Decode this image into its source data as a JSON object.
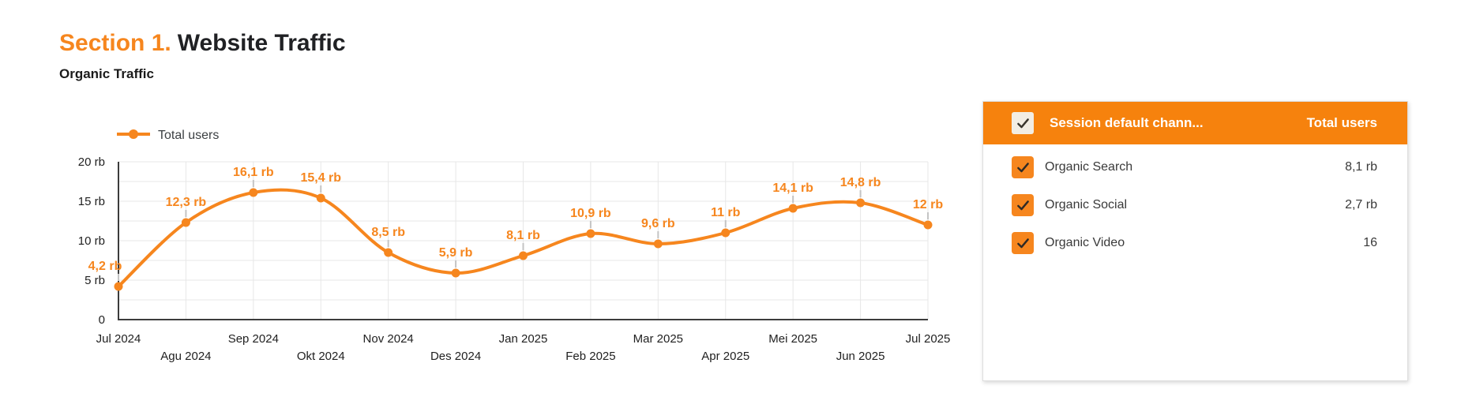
{
  "header": {
    "section_label": "Section 1.",
    "title": "Website Traffic"
  },
  "chart": {
    "subtitle": "Organic Traffic"
  },
  "chart_data": {
    "type": "line",
    "title": "Organic Traffic",
    "unit": "rb (thousands)",
    "x": [
      "Jul 2024",
      "Agu 2024",
      "Sep 2024",
      "Okt 2024",
      "Nov 2024",
      "Des 2024",
      "Jan 2025",
      "Feb 2025",
      "Mar 2025",
      "Apr 2025",
      "Mei 2025",
      "Jun 2025",
      "Jul 2025"
    ],
    "series": [
      {
        "name": "Total users",
        "values": [
          4.2,
          12.3,
          16.1,
          15.4,
          8.5,
          5.9,
          8.1,
          10.9,
          9.6,
          11,
          14.1,
          14.8,
          12
        ],
        "point_labels": [
          "4,2 rb",
          "12,3 rb",
          "16,1 rb",
          "15,4 rb",
          "8,5 rb",
          "5,9 rb",
          "8,1 rb",
          "10,9 rb",
          "9,6 rb",
          "11 rb",
          "14,1 rb",
          "14,8 rb",
          "12 rb"
        ]
      }
    ],
    "ylim": [
      0,
      20
    ],
    "y_ticks": [
      {
        "value": 0,
        "label": "0"
      },
      {
        "value": 5,
        "label": "5 rb"
      },
      {
        "value": 10,
        "label": "10 rb"
      },
      {
        "value": 15,
        "label": "15 rb"
      },
      {
        "value": 20,
        "label": "20 rb"
      }
    ],
    "minor_grid_step": 2.5,
    "grid": true,
    "legend_position": "top-left",
    "line_color": "#F6861E"
  },
  "table": {
    "header": {
      "channel": "Session default chann...",
      "users": "Total users"
    },
    "select_all_checked": true,
    "rows": [
      {
        "label": "Organic Search",
        "value": "8,1 rb",
        "checked": true
      },
      {
        "label": "Organic Social",
        "value": "2,7 rb",
        "checked": true
      },
      {
        "label": "Organic Video",
        "value": "16",
        "checked": true
      }
    ]
  },
  "colors": {
    "accent": "#F6861E",
    "table_header_bg": "#F6820D",
    "text_dark": "#202124",
    "grid_line": "#E7E7E7",
    "axis_line": "#3C3C3C",
    "label_stem": "#C4C4C4"
  }
}
